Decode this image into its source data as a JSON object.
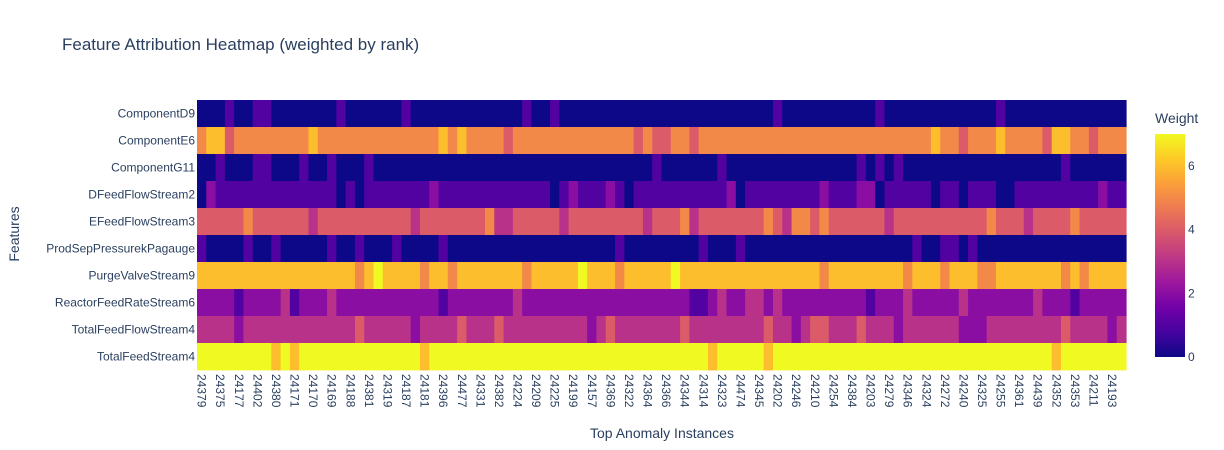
{
  "chart_data": {
    "type": "heatmap",
    "title": "Feature Attribution Heatmap (weighted by rank)",
    "xlabel": "Top Anomaly Instances",
    "ylabel": "Features",
    "colorbar_title": "Weight",
    "colorbar_ticks": [
      0,
      2,
      4,
      6
    ],
    "zmin": 0,
    "zmax": 7,
    "colorscale": [
      "#0d0887",
      "#46039f",
      "#7201a8",
      "#9c179e",
      "#bd3786",
      "#d8576b",
      "#ed7953",
      "#fb9f3a",
      "#fdca26",
      "#f0f921"
    ],
    "y_categories": [
      "ComponentD9",
      "ComponentE6",
      "ComponentG11",
      "DFeedFlowStream2",
      "EFeedFlowStream3",
      "ProdSepPressurekPagauge",
      "PurgeValveStream9",
      "ReactorFeedRateStream6",
      "TotalFeedFlowStream4",
      "TotalFeedStream4"
    ],
    "x_tick_labels": [
      "24379",
      "24375",
      "24177",
      "24402",
      "24380",
      "24171",
      "24170",
      "24169",
      "24188",
      "24381",
      "24319",
      "24187",
      "24181",
      "24396",
      "24477",
      "24331",
      "24382",
      "24224",
      "24209",
      "24225",
      "24199",
      "24157",
      "24369",
      "24322",
      "24364",
      "24366",
      "24344",
      "24314",
      "24323",
      "24474",
      "24345",
      "24202",
      "24246",
      "24210",
      "24254",
      "24384",
      "24203",
      "24279",
      "24346",
      "24324",
      "24272",
      "24240",
      "24325",
      "24255",
      "24361",
      "24439",
      "24352",
      "24353",
      "24211",
      "24193"
    ],
    "n_columns": 100,
    "row_base_values": [
      0,
      5,
      0,
      1,
      4,
      0,
      6,
      2,
      3,
      7
    ]
  }
}
